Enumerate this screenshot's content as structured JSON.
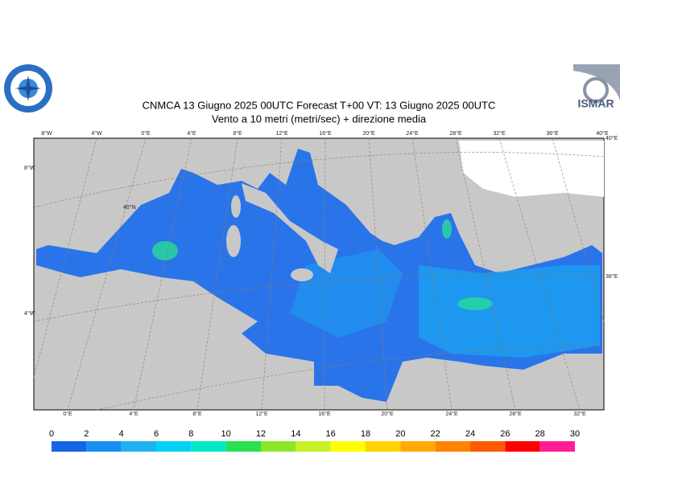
{
  "header": {
    "title": "CNMCA 13   Giugno  2025 00UTC Forecast T+00 VT: 13   Giugno  2025 00UTC",
    "subtitle": "Vento a 10 metri (metri/sec) + direzione media"
  },
  "logo": {
    "text": "ISMAR"
  },
  "map": {
    "top_labels": [
      "8°W",
      "4°W",
      "0°E",
      "4°E",
      "8°E",
      "12°E",
      "16°E",
      "20°E",
      "24°E",
      "28°E",
      "32°E",
      "36°E",
      "40°E"
    ],
    "bottom_labels": [
      "0°E",
      "4°E",
      "8°E",
      "12°E",
      "16°E",
      "20°E",
      "24°E",
      "28°E",
      "32°E"
    ],
    "left_labels": [
      "8°W",
      "40°N",
      "4°W"
    ],
    "right_labels": [
      "40°E",
      "38°E"
    ]
  },
  "colorbar": {
    "ticks": [
      0,
      2,
      4,
      6,
      8,
      10,
      12,
      14,
      16,
      18,
      20,
      22,
      24,
      26,
      28,
      30
    ],
    "colors": [
      "#1565e8",
      "#168ff0",
      "#20b2f0",
      "#00d2f5",
      "#00e8c8",
      "#28e050",
      "#8ce628",
      "#c8f028",
      "#ffff00",
      "#ffd200",
      "#ffaa00",
      "#ff8200",
      "#ff5a00",
      "#ff0000",
      "#ff1e96"
    ]
  }
}
